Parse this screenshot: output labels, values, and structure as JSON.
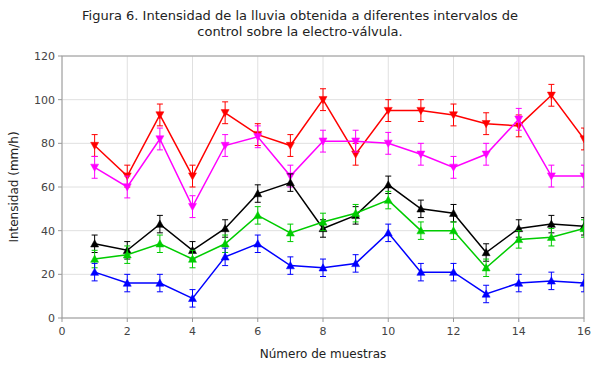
{
  "chart_data": {
    "type": "line",
    "title": "Figura 6. Intensidad de la lluvia obtenida a diferentes intervalos de\ncontrol sobre la electro-válvula.",
    "xlabel": "Número de muestras",
    "ylabel": "Intensidad (mm/h)",
    "xlim": [
      0,
      16
    ],
    "ylim": [
      0,
      120
    ],
    "xticks": [
      0,
      2,
      4,
      6,
      8,
      10,
      12,
      14,
      16
    ],
    "yticks": [
      0,
      20,
      40,
      60,
      80,
      100,
      120
    ],
    "grid": true,
    "x": [
      1,
      2,
      3,
      4,
      5,
      6,
      7,
      8,
      9,
      10,
      11,
      12,
      13,
      14,
      15,
      16
    ],
    "series": [
      {
        "color": "#ff0000",
        "marker": "triangle-down",
        "values": [
          79,
          65,
          93,
          65,
          94,
          84,
          79,
          100,
          75,
          95,
          95,
          93,
          89,
          88,
          102,
          82
        ],
        "errors": [
          5,
          5,
          5,
          5,
          5,
          5,
          5,
          5,
          5,
          5,
          5,
          5,
          5,
          5,
          5,
          5
        ]
      },
      {
        "color": "#ff00ff",
        "marker": "triangle-down",
        "values": [
          69,
          60,
          82,
          51,
          79,
          83,
          65,
          81,
          81,
          80,
          75,
          69,
          75,
          91,
          65,
          65
        ],
        "errors": [
          5,
          5,
          5,
          5,
          5,
          5,
          5,
          5,
          5,
          5,
          5,
          5,
          5,
          5,
          5,
          5
        ]
      },
      {
        "color": "#000000",
        "marker": "triangle-up",
        "values": [
          34,
          31,
          43,
          31,
          41,
          57,
          62,
          41,
          47,
          61,
          50,
          48,
          30,
          41,
          43,
          42
        ],
        "errors": [
          4,
          4,
          4,
          4,
          4,
          4,
          4,
          4,
          4,
          4,
          4,
          4,
          4,
          4,
          4,
          4
        ]
      },
      {
        "color": "#00cc00",
        "marker": "triangle-up",
        "values": [
          27,
          29,
          34,
          27,
          34,
          47,
          39,
          44,
          48,
          54,
          40,
          40,
          23,
          36,
          37,
          41
        ],
        "errors": [
          4,
          4,
          4,
          4,
          4,
          4,
          4,
          4,
          4,
          4,
          4,
          4,
          4,
          4,
          4,
          4
        ]
      },
      {
        "color": "#0000ff",
        "marker": "triangle-up",
        "values": [
          21,
          16,
          16,
          9,
          28,
          34,
          24,
          23,
          25,
          39,
          21,
          21,
          11,
          16,
          17,
          16
        ],
        "errors": [
          4,
          4,
          4,
          4,
          4,
          4,
          4,
          4,
          4,
          4,
          4,
          4,
          4,
          4,
          4,
          4
        ]
      }
    ]
  }
}
